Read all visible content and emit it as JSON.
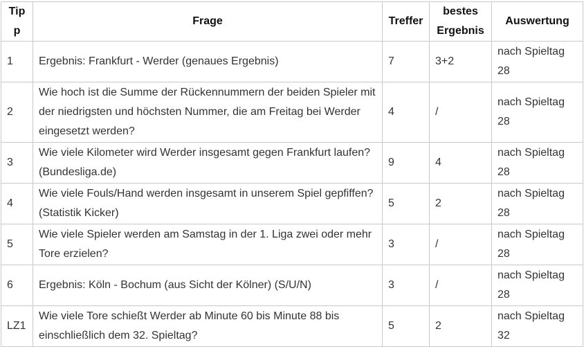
{
  "colors": {
    "border": "#c9c9c9",
    "header_text": "#111111",
    "body_text": "#333333",
    "background": "#ffffff"
  },
  "table": {
    "columns": [
      {
        "key": "tipp",
        "label": "Tipp"
      },
      {
        "key": "frage",
        "label": "Frage"
      },
      {
        "key": "treffer",
        "label": "Treffer"
      },
      {
        "key": "bestes_ergebnis",
        "label": "bestes Ergebnis"
      },
      {
        "key": "auswertung",
        "label": "Auswertung"
      }
    ],
    "rows": [
      {
        "tipp": "1",
        "frage": "Ergebnis: Frankfurt - Werder (genaues Ergebnis)",
        "treffer": "7",
        "bestes_ergebnis": "3+2",
        "auswertung": "nach Spieltag 28"
      },
      {
        "tipp": "2",
        "frage": "Wie hoch ist die Summe der Rückennummern der beiden Spieler mit der niedrigsten und höchsten Nummer, die am Freitag bei Werder eingesetzt werden?",
        "treffer": "4",
        "bestes_ergebnis": "/",
        "auswertung": "nach Spieltag 28"
      },
      {
        "tipp": "3",
        "frage": "Wie viele Kilometer wird Werder insgesamt gegen Frankfurt laufen? (Bundesliga.de)",
        "treffer": "9",
        "bestes_ergebnis": "4",
        "auswertung": "nach Spieltag 28"
      },
      {
        "tipp": "4",
        "frage": "Wie viele Fouls/Hand werden insgesamt in unserem Spiel gepfiffen? (Statistik Kicker)",
        "treffer": "5",
        "bestes_ergebnis": "2",
        "auswertung": "nach Spieltag 28"
      },
      {
        "tipp": "5",
        "frage": "Wie viele Spieler werden am Samstag in der 1. Liga zwei oder mehr Tore erzielen?",
        "treffer": "3",
        "bestes_ergebnis": "/",
        "auswertung": "nach Spieltag 28"
      },
      {
        "tipp": "6",
        "frage": "Ergebnis: Köln - Bochum (aus Sicht der Kölner) (S/U/N)",
        "treffer": "3",
        "bestes_ergebnis": "/",
        "auswertung": "nach Spieltag 28"
      },
      {
        "tipp": "LZ1",
        "frage": "Wie viele Tore schießt Werder ab Minute 60 bis Minute 88 bis einschließlich dem 32. Spieltag?",
        "treffer": "5",
        "bestes_ergebnis": "2",
        "auswertung": "nach Spieltag 32"
      }
    ]
  }
}
